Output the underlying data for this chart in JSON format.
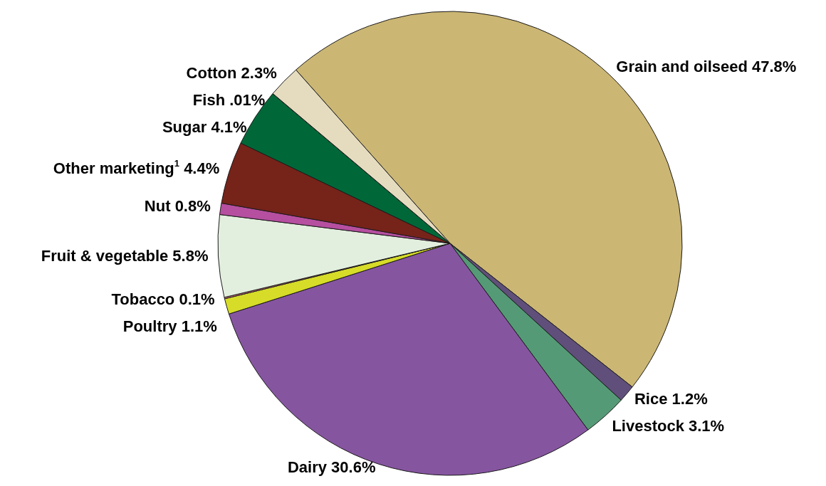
{
  "chart_data": {
    "type": "pie",
    "categories": [
      "Grain and oilseed",
      "Rice",
      "Livestock",
      "Dairy",
      "Poultry",
      "Tobacco",
      "Fruit & vegetable",
      "Nut",
      "Other marketing$^{1}$",
      "Sugar",
      "Fish",
      "Cotton"
    ],
    "values": [
      47.8,
      1.2,
      3.1,
      30.6,
      1.1,
      0.1,
      5.8,
      0.8,
      4.4,
      4.1,
      0.01,
      2.3
    ],
    "value_labels": [
      "47.8%",
      "1.2%",
      "3.1%",
      "30.6%",
      "1.1%",
      "0.1%",
      "5.8%",
      "0.8%",
      "4.4%",
      "4.1%",
      ".01%",
      "2.3%"
    ],
    "colors": [
      "#cbb674",
      "#5f4f7a",
      "#559a76",
      "#8655a0",
      "#d6dc28",
      "#d9727f",
      "#e3efde",
      "#b64fa0",
      "#76231a",
      "#006838",
      "#ffffff",
      "#e5dcc0"
    ]
  }
}
